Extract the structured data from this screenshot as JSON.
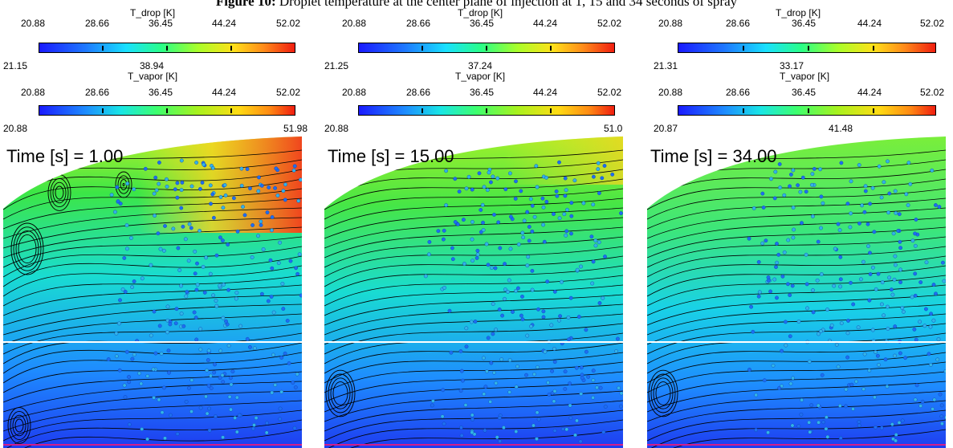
{
  "caption": {
    "label": "Figure 10:",
    "text": " Droplet temperature at the center plane of injection at 1, 15 and 34 seconds of spray"
  },
  "colorbar_ticks": [
    "20.88",
    "28.66",
    "36.45",
    "44.24",
    "52.02"
  ],
  "colorbar_titles": {
    "drop": "T_drop [K]",
    "vapor": "T_vapor [K]"
  },
  "panels": [
    {
      "drop_min": "21.15",
      "drop_max": "38.94",
      "vapor_min": "20.88",
      "vapor_max": "51.98",
      "time": "Time [s] = 1.00"
    },
    {
      "drop_min": "21.25",
      "drop_max": "37.24",
      "vapor_min": "20.88",
      "vapor_max": "51.0",
      "time": "Time [s] = 15.00"
    },
    {
      "drop_min": "21.31",
      "drop_max": "33.17",
      "vapor_min": "20.87",
      "vapor_max": "41.48",
      "time": "Time [s] = 34.00"
    }
  ],
  "colors": {
    "hot": "#f0281e",
    "warm": "#ffd21e",
    "mid": "#7cf23c",
    "cool": "#19d2f0",
    "cold": "#1e5aff",
    "streamline": "#000000",
    "droplet": "#1e6ef0"
  }
}
